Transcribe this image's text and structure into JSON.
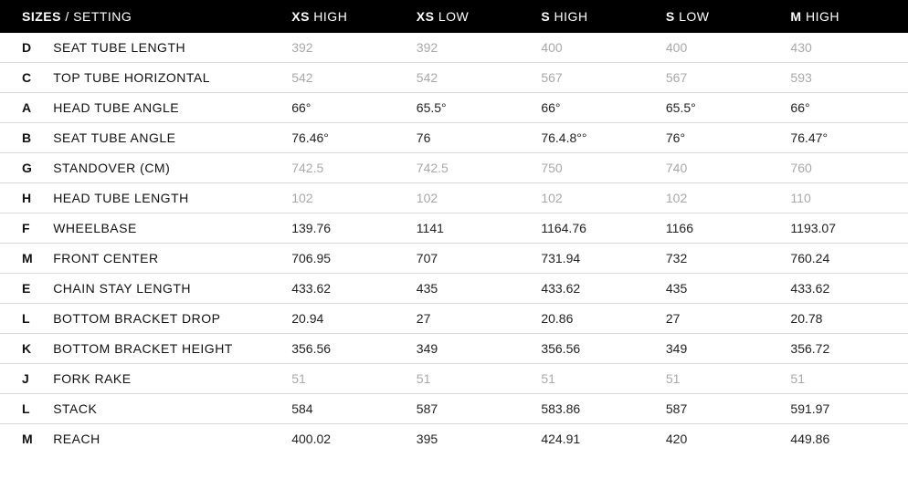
{
  "style": {
    "header_bg": "#000000",
    "header_text": "#ffffff",
    "row_border": "#d9d9d9",
    "muted_text": "#a9a9a9",
    "strong_text": "#222222",
    "font_size_header": 14,
    "font_size_cell": 14
  },
  "header": {
    "sizes_bold": "SIZES",
    "sizes_sep": " / ",
    "setting": "SETTING",
    "columns": [
      {
        "prefix": "XS",
        "suffix": " HIGH"
      },
      {
        "prefix": "XS",
        "suffix": " LOW"
      },
      {
        "prefix": "S",
        "suffix": " HIGH"
      },
      {
        "prefix": "S",
        "suffix": " LOW"
      },
      {
        "prefix": "M",
        "suffix": " HIGH"
      }
    ]
  },
  "rows": [
    {
      "code": "D",
      "label": "SEAT TUBE LENGTH",
      "muted": true,
      "values": [
        "392",
        "392",
        "400",
        "400",
        "430"
      ]
    },
    {
      "code": "C",
      "label": "TOP TUBE HORIZONTAL",
      "muted": true,
      "values": [
        "542",
        "542",
        "567",
        "567",
        "593"
      ]
    },
    {
      "code": "A",
      "label": "HEAD TUBE ANGLE",
      "muted": false,
      "values": [
        "66°",
        "65.5°",
        "66°",
        "65.5°",
        "66°"
      ]
    },
    {
      "code": "B",
      "label": "SEAT TUBE ANGLE",
      "muted": false,
      "values": [
        "76.46°",
        "76",
        "76.4.8°°",
        "76°",
        "76.47°"
      ]
    },
    {
      "code": "G",
      "label": "STANDOVER (CM)",
      "muted": true,
      "values": [
        "742.5",
        "742.5",
        "750",
        "740",
        "760"
      ]
    },
    {
      "code": "H",
      "label": "HEAD TUBE LENGTH",
      "muted": true,
      "values": [
        "102",
        "102",
        "102",
        "102",
        "110"
      ]
    },
    {
      "code": "F",
      "label": "WHEELBASE",
      "muted": false,
      "values": [
        "139.76",
        "1141",
        "1164.76",
        "1166",
        "1193.07"
      ]
    },
    {
      "code": "M",
      "label": "FRONT CENTER",
      "muted": false,
      "values": [
        "706.95",
        "707",
        "731.94",
        "732",
        "760.24"
      ]
    },
    {
      "code": "E",
      "label": "CHAIN STAY LENGTH",
      "muted": false,
      "values": [
        "433.62",
        "435",
        "433.62",
        "435",
        "433.62"
      ]
    },
    {
      "code": "L",
      "label": "BOTTOM BRACKET DROP",
      "muted": false,
      "values": [
        "20.94",
        "27",
        "20.86",
        "27",
        "20.78"
      ]
    },
    {
      "code": "K",
      "label": "BOTTOM BRACKET HEIGHT",
      "muted": false,
      "values": [
        "356.56",
        "349",
        "356.56",
        "349",
        "356.72"
      ]
    },
    {
      "code": "J",
      "label": "FORK RAKE",
      "muted": true,
      "values": [
        "51",
        "51",
        "51",
        "51",
        "51"
      ]
    },
    {
      "code": "L",
      "label": "STACK",
      "muted": false,
      "values": [
        "584",
        "587",
        "583.86",
        "587",
        "591.97"
      ]
    },
    {
      "code": "M",
      "label": "REACH",
      "muted": false,
      "values": [
        "400.02",
        "395",
        "424.91",
        "420",
        "449.86"
      ]
    }
  ]
}
